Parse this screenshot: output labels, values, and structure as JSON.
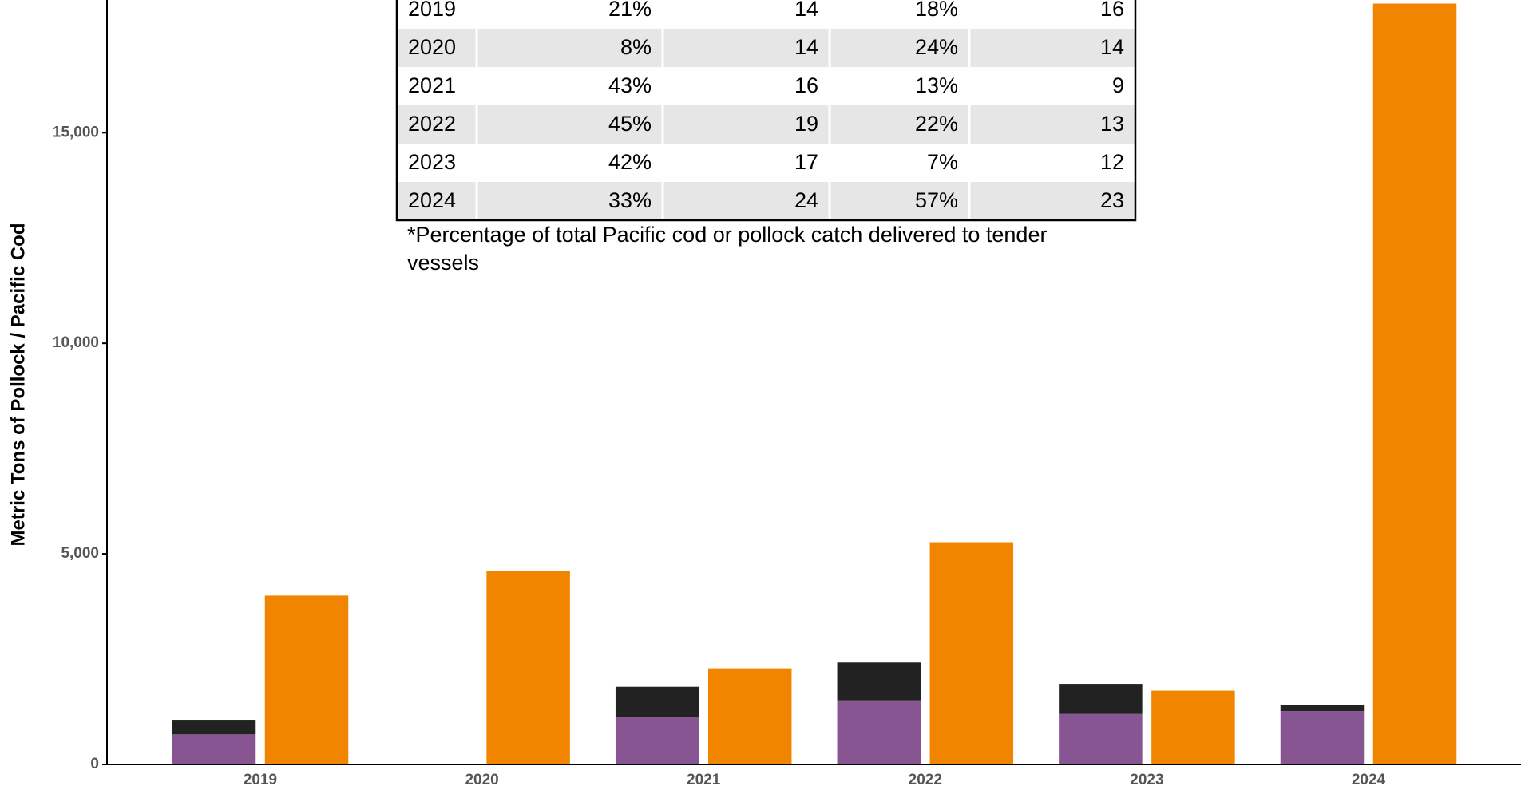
{
  "chart_data": {
    "type": "bar",
    "y_label": "Metric Tons of Pollock / Pacific Cod",
    "categories": [
      "2019",
      "2020",
      "2021",
      "2022",
      "2023",
      "2024"
    ],
    "series": [
      {
        "color": "#875592",
        "group": 0,
        "values": [
          714,
          0,
          1129,
          1521,
          1198,
          1267
        ]
      },
      {
        "color": "#222222",
        "group": 0,
        "values": [
          346,
          0,
          714,
          899,
          714,
          138
        ]
      },
      {
        "color": "#f28500",
        "group": 1,
        "values": [
          4009,
          4585,
          2281,
          5276,
          1751,
          18065
        ]
      }
    ],
    "ylim": [
      0,
      18150
    ],
    "yticks": [
      0,
      {
        "value": 5000,
        "label": "5,000"
      },
      {
        "value": 10000,
        "label": "10,000"
      },
      {
        "value": 15000,
        "label": "15,000"
      }
    ]
  },
  "table": {
    "rows": [
      [
        "2019",
        "21%",
        "14",
        "18%",
        "16"
      ],
      [
        "2020",
        "8%",
        "14",
        "24%",
        "14"
      ],
      [
        "2021",
        "43%",
        "16",
        "13%",
        "9"
      ],
      [
        "2022",
        "45%",
        "19",
        "22%",
        "13"
      ],
      [
        "2023",
        "42%",
        "17",
        "7%",
        "12"
      ],
      [
        "2024",
        "33%",
        "24",
        "57%",
        "23"
      ]
    ],
    "note": [
      "*Percentage of total Pacific cod or pollock catch delivered to tender",
      "vessels"
    ]
  }
}
